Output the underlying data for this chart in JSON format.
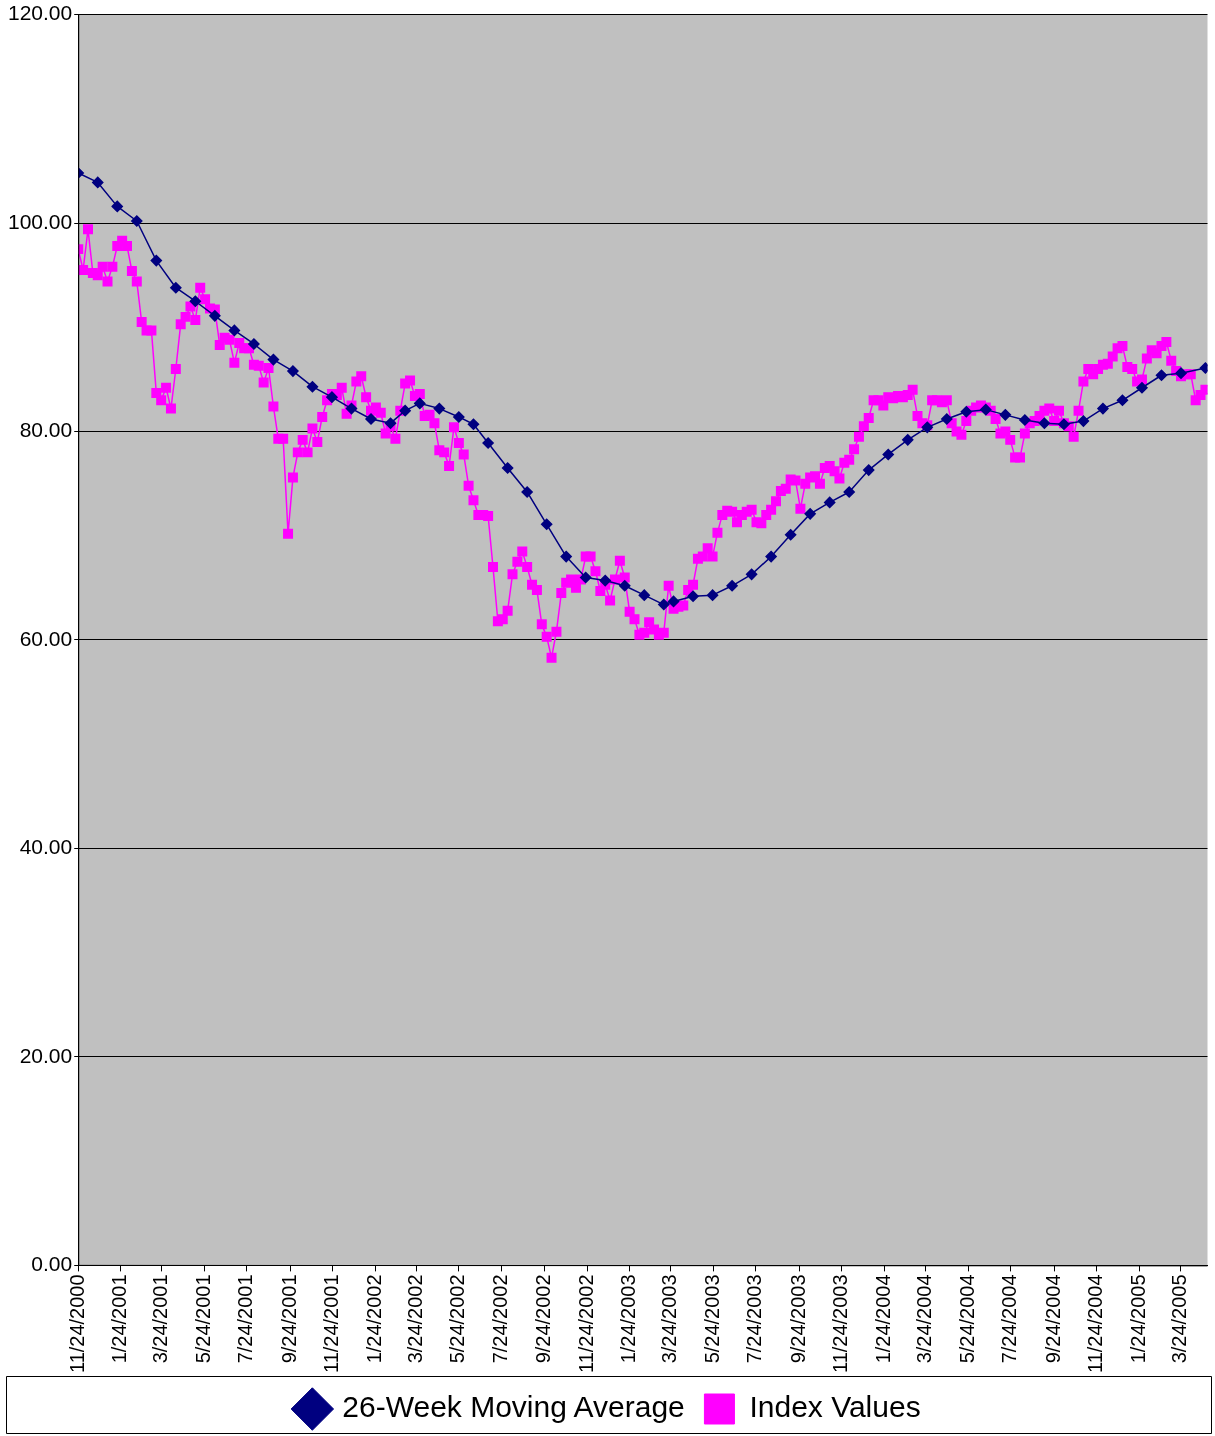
{
  "chart_data": {
    "type": "line",
    "xlim": [
      "2000-11-24",
      "2005-05-02"
    ],
    "xticks": [
      {
        "value": "2000-11-24",
        "label": "11/24/2000"
      },
      {
        "value": "2001-01-24",
        "label": "1/24/2001"
      },
      {
        "value": "2001-03-24",
        "label": "3/24/2001"
      },
      {
        "value": "2001-05-24",
        "label": "5/24/2001"
      },
      {
        "value": "2001-07-24",
        "label": "7/24/2001"
      },
      {
        "value": "2001-09-24",
        "label": "9/24/2001"
      },
      {
        "value": "2001-11-24",
        "label": "11/24/2001"
      },
      {
        "value": "2002-01-24",
        "label": "1/24/2002"
      },
      {
        "value": "2002-03-24",
        "label": "3/24/2002"
      },
      {
        "value": "2002-05-24",
        "label": "5/24/2002"
      },
      {
        "value": "2002-07-24",
        "label": "7/24/2002"
      },
      {
        "value": "2002-09-24",
        "label": "9/24/2002"
      },
      {
        "value": "2002-11-24",
        "label": "11/24/2002"
      },
      {
        "value": "2003-01-24",
        "label": "1/24/2003"
      },
      {
        "value": "2003-03-24",
        "label": "3/24/2003"
      },
      {
        "value": "2003-05-24",
        "label": "5/24/2003"
      },
      {
        "value": "2003-07-24",
        "label": "7/24/2003"
      },
      {
        "value": "2003-09-24",
        "label": "9/24/2003"
      },
      {
        "value": "2003-11-24",
        "label": "11/24/2003"
      },
      {
        "value": "2004-01-24",
        "label": "1/24/2004"
      },
      {
        "value": "2004-03-24",
        "label": "3/24/2004"
      },
      {
        "value": "2004-05-24",
        "label": "5/24/2004"
      },
      {
        "value": "2004-07-24",
        "label": "7/24/2004"
      },
      {
        "value": "2004-09-24",
        "label": "9/24/2004"
      },
      {
        "value": "2004-11-24",
        "label": "11/24/2004"
      },
      {
        "value": "2005-01-24",
        "label": "1/24/2005"
      },
      {
        "value": "2005-03-24",
        "label": "3/24/2005"
      }
    ],
    "ylim": [
      0,
      120
    ],
    "yticks": [
      {
        "value": 0,
        "label": "0.00"
      },
      {
        "value": 20,
        "label": "20.00"
      },
      {
        "value": 40,
        "label": "40.00"
      },
      {
        "value": 60,
        "label": "60.00"
      },
      {
        "value": 80,
        "label": "80.00"
      },
      {
        "value": 100,
        "label": "100.00"
      },
      {
        "value": 120,
        "label": "120.00"
      }
    ],
    "grid": "y",
    "legend": "bottom",
    "line_style": "solid",
    "series": [
      {
        "name": "26-Week Moving Average",
        "color": "#000080",
        "marker": "diamond",
        "x": [
          "2000-11-24",
          "2000-12-22",
          "2001-01-19",
          "2001-02-16",
          "2001-03-16",
          "2001-04-13",
          "2001-05-11",
          "2001-06-08",
          "2001-07-06",
          "2001-08-03",
          "2001-08-31",
          "2001-09-28",
          "2001-10-26",
          "2001-11-23",
          "2001-12-21",
          "2002-01-18",
          "2002-02-15",
          "2002-03-08",
          "2002-03-29",
          "2002-04-26",
          "2002-05-24",
          "2002-06-14",
          "2002-07-05",
          "2002-08-02",
          "2002-08-30",
          "2002-09-27",
          "2002-10-25",
          "2002-11-22",
          "2002-12-20",
          "2003-01-17",
          "2003-02-14",
          "2003-03-14",
          "2003-03-28",
          "2003-04-25",
          "2003-05-23",
          "2003-06-20",
          "2003-07-18",
          "2003-08-15",
          "2003-09-12",
          "2003-10-10",
          "2003-11-07",
          "2003-12-05",
          "2004-01-02",
          "2004-01-30",
          "2004-02-27",
          "2004-03-26",
          "2004-04-23",
          "2004-05-21",
          "2004-06-18",
          "2004-07-16",
          "2004-08-13",
          "2004-09-10",
          "2004-10-08",
          "2004-11-05",
          "2004-12-03",
          "2004-12-31",
          "2005-01-28",
          "2005-02-25",
          "2005-03-25",
          "2005-04-29"
        ],
        "values": [
          104.8,
          103.9,
          101.6,
          100.2,
          96.4,
          93.8,
          92.5,
          91.1,
          89.7,
          88.4,
          86.9,
          85.8,
          84.3,
          83.3,
          82.2,
          81.2,
          80.8,
          82.0,
          82.7,
          82.2,
          81.4,
          80.7,
          78.9,
          76.5,
          74.2,
          71.1,
          68.0,
          66.0,
          65.7,
          65.2,
          64.3,
          63.4,
          63.7,
          64.2,
          64.3,
          65.2,
          66.3,
          68.0,
          70.1,
          72.1,
          73.2,
          74.2,
          76.3,
          77.8,
          79.2,
          80.4,
          81.2,
          81.9,
          82.1,
          81.6,
          81.1,
          80.8,
          80.7,
          81.0,
          82.2,
          83.0,
          84.2,
          85.4,
          85.6,
          86.1
        ]
      },
      {
        "name": "Index Values",
        "color": "#ff00ff",
        "marker": "square",
        "x": [
          "2000-11-24",
          "2000-12-01",
          "2000-12-08",
          "2000-12-15",
          "2000-12-22",
          "2000-12-29",
          "2001-01-05",
          "2001-01-12",
          "2001-01-19",
          "2001-01-26",
          "2001-02-02",
          "2001-02-09",
          "2001-02-16",
          "2001-02-23",
          "2001-03-02",
          "2001-03-09",
          "2001-03-16",
          "2001-03-23",
          "2001-03-30",
          "2001-04-06",
          "2001-04-13",
          "2001-04-20",
          "2001-04-27",
          "2001-05-04",
          "2001-05-11",
          "2001-05-18",
          "2001-05-25",
          "2001-06-01",
          "2001-06-08",
          "2001-06-15",
          "2001-06-22",
          "2001-06-29",
          "2001-07-06",
          "2001-07-13",
          "2001-07-20",
          "2001-07-27",
          "2001-08-03",
          "2001-08-10",
          "2001-08-17",
          "2001-08-24",
          "2001-08-31",
          "2001-09-07",
          "2001-09-14",
          "2001-09-21",
          "2001-09-28",
          "2001-10-05",
          "2001-10-12",
          "2001-10-19",
          "2001-10-26",
          "2001-11-02",
          "2001-11-09",
          "2001-11-16",
          "2001-11-23",
          "2001-11-30",
          "2001-12-07",
          "2001-12-14",
          "2001-12-21",
          "2001-12-28",
          "2002-01-04",
          "2002-01-11",
          "2002-01-18",
          "2002-01-25",
          "2002-02-01",
          "2002-02-08",
          "2002-02-15",
          "2002-02-22",
          "2002-03-01",
          "2002-03-08",
          "2002-03-15",
          "2002-03-22",
          "2002-03-29",
          "2002-04-05",
          "2002-04-12",
          "2002-04-19",
          "2002-04-26",
          "2002-05-03",
          "2002-05-10",
          "2002-05-17",
          "2002-05-24",
          "2002-05-31",
          "2002-06-07",
          "2002-06-14",
          "2002-06-21",
          "2002-06-28",
          "2002-07-05",
          "2002-07-12",
          "2002-07-19",
          "2002-07-26",
          "2002-08-02",
          "2002-08-09",
          "2002-08-16",
          "2002-08-23",
          "2002-08-30",
          "2002-09-06",
          "2002-09-13",
          "2002-09-20",
          "2002-09-27",
          "2002-10-04",
          "2002-10-11",
          "2002-10-18",
          "2002-10-25",
          "2002-11-01",
          "2002-11-08",
          "2002-11-15",
          "2002-11-22",
          "2002-11-29",
          "2002-12-06",
          "2002-12-13",
          "2002-12-20",
          "2002-12-27",
          "2003-01-03",
          "2003-01-10",
          "2003-01-17",
          "2003-01-24",
          "2003-01-31",
          "2003-02-07",
          "2003-02-14",
          "2003-02-21",
          "2003-02-28",
          "2003-03-07",
          "2003-03-14",
          "2003-03-21",
          "2003-03-28",
          "2003-04-04",
          "2003-04-11",
          "2003-04-18",
          "2003-04-25",
          "2003-05-02",
          "2003-05-09",
          "2003-05-16",
          "2003-05-23",
          "2003-05-30",
          "2003-06-06",
          "2003-06-13",
          "2003-06-20",
          "2003-06-27",
          "2003-07-04",
          "2003-07-11",
          "2003-07-18",
          "2003-07-25",
          "2003-08-01",
          "2003-08-08",
          "2003-08-15",
          "2003-08-22",
          "2003-08-29",
          "2003-09-05",
          "2003-09-12",
          "2003-09-19",
          "2003-09-26",
          "2003-10-03",
          "2003-10-10",
          "2003-10-17",
          "2003-10-24",
          "2003-10-31",
          "2003-11-07",
          "2003-11-14",
          "2003-11-21",
          "2003-11-28",
          "2003-12-05",
          "2003-12-12",
          "2003-12-19",
          "2003-12-26",
          "2004-01-02",
          "2004-01-09",
          "2004-01-16",
          "2004-01-23",
          "2004-01-30",
          "2004-02-06",
          "2004-02-13",
          "2004-02-20",
          "2004-02-27",
          "2004-03-05",
          "2004-03-12",
          "2004-03-19",
          "2004-03-26",
          "2004-04-02",
          "2004-04-09",
          "2004-04-16",
          "2004-04-23",
          "2004-04-30",
          "2004-05-07",
          "2004-05-14",
          "2004-05-21",
          "2004-05-28",
          "2004-06-04",
          "2004-06-11",
          "2004-06-18",
          "2004-06-25",
          "2004-07-02",
          "2004-07-09",
          "2004-07-16",
          "2004-07-23",
          "2004-07-30",
          "2004-08-06",
          "2004-08-13",
          "2004-08-20",
          "2004-08-27",
          "2004-09-03",
          "2004-09-10",
          "2004-09-17",
          "2004-09-24",
          "2004-10-01",
          "2004-10-08",
          "2004-10-15",
          "2004-10-22",
          "2004-10-29",
          "2004-11-05",
          "2004-11-12",
          "2004-11-19",
          "2004-11-26",
          "2004-12-03",
          "2004-12-10",
          "2004-12-17",
          "2004-12-24",
          "2004-12-31",
          "2005-01-07",
          "2005-01-14",
          "2005-01-21",
          "2005-01-28",
          "2005-02-04",
          "2005-02-11",
          "2005-02-18",
          "2005-02-25",
          "2005-03-04",
          "2005-03-11",
          "2005-03-18",
          "2005-03-25",
          "2005-04-01",
          "2005-04-08",
          "2005-04-15",
          "2005-04-22",
          "2005-04-29"
        ],
        "values": [
          97.5,
          95.5,
          99.4,
          95.2,
          95.0,
          95.8,
          94.4,
          95.8,
          97.8,
          98.3,
          97.8,
          95.4,
          94.4,
          90.5,
          89.7,
          89.7,
          83.7,
          83.0,
          84.2,
          82.2,
          86.0,
          90.3,
          91.0,
          92.0,
          90.7,
          93.8,
          92.7,
          91.8,
          91.7,
          88.3,
          89.0,
          88.8,
          86.6,
          88.5,
          88.0,
          88.0,
          86.4,
          86.3,
          84.7,
          86.1,
          82.4,
          79.3,
          79.3,
          70.2,
          75.6,
          78.0,
          79.2,
          78.0,
          80.3,
          79.0,
          81.4,
          83.0,
          83.6,
          83.5,
          84.2,
          81.7,
          82.5,
          84.8,
          85.3,
          83.3,
          82.0,
          82.3,
          81.8,
          79.8,
          80.5,
          79.3,
          82.0,
          84.6,
          84.9,
          83.4,
          83.6,
          81.5,
          81.6,
          80.8,
          78.2,
          78.0,
          76.7,
          80.4,
          78.9,
          77.8,
          74.8,
          73.4,
          72.0,
          72.0,
          71.9,
          67.0,
          61.8,
          62.0,
          62.8,
          66.3,
          67.5,
          68.5,
          67.0,
          65.3,
          64.8,
          61.5,
          60.3,
          58.3,
          60.8,
          64.5,
          65.5,
          65.8,
          65.0,
          65.8,
          68.0,
          68.0,
          66.6,
          64.7,
          65.3,
          63.8,
          65.8,
          67.6,
          66.0,
          62.7,
          62.0,
          60.5,
          60.7,
          61.7,
          61.0,
          60.5,
          60.7,
          65.2,
          63.0,
          63.2,
          63.3,
          64.8,
          65.3,
          67.8,
          68.0,
          68.8,
          68.0,
          70.3,
          72.0,
          72.4,
          72.3,
          71.3,
          72.0,
          72.3,
          72.5,
          71.3,
          71.2,
          72.0,
          72.5,
          73.3,
          74.3,
          74.5,
          75.4,
          75.3,
          72.6,
          75.0,
          75.6,
          75.7,
          75.0,
          76.5,
          76.7,
          76.2,
          75.5,
          77.0,
          77.3,
          78.3,
          79.5,
          80.5,
          81.3,
          83.0,
          83.0,
          82.5,
          83.3,
          83.2,
          83.4,
          83.3,
          83.5,
          84.0,
          81.5,
          80.8,
          80.6,
          83.0,
          83.0,
          82.8,
          83.0,
          80.8,
          80.0,
          79.7,
          81.0,
          82.0,
          82.3,
          82.5,
          82.3,
          82.0,
          81.2,
          79.8,
          80.0,
          79.2,
          77.5,
          77.5,
          79.8,
          80.8,
          81.0,
          81.5,
          82.0,
          82.2,
          81.0,
          82.0,
          80.8,
          80.5,
          79.5,
          82.0,
          84.8,
          86.0,
          85.5,
          86.0,
          86.4,
          86.5,
          87.2,
          88.0,
          88.2,
          86.2,
          86.0,
          84.8,
          85.0,
          87.0,
          87.8,
          87.5,
          88.2,
          88.6,
          86.8,
          85.8,
          85.3,
          85.5,
          85.5,
          83.0,
          83.5,
          84.0
        ]
      }
    ]
  }
}
